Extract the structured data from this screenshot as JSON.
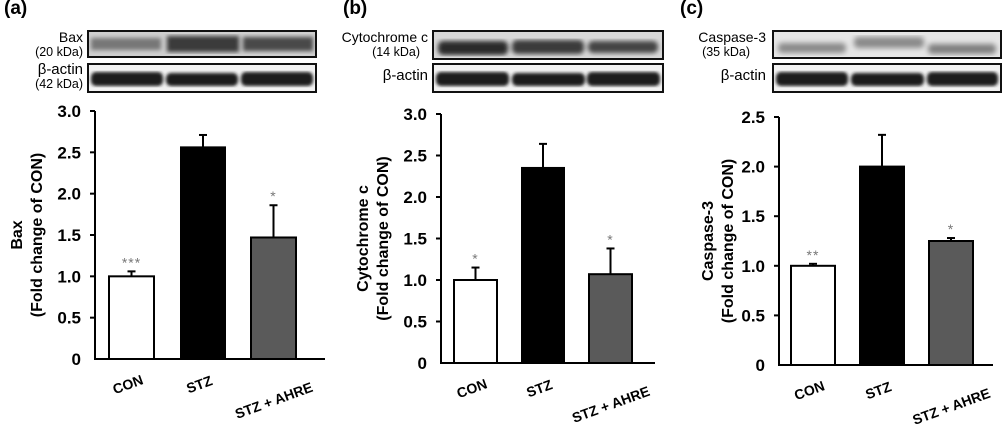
{
  "panels": [
    {
      "label": "(a)",
      "blot_top": {
        "name": "Bax",
        "kda": "(20 kDa)"
      },
      "blot_bottom": {
        "name": "β-actin",
        "kda": "(42 kDa)"
      }
    },
    {
      "label": "(b)",
      "blot_top": {
        "name": "Cytochrome c",
        "kda": "(14 kDa)"
      },
      "blot_bottom": {
        "name": "β-actin",
        "kda": ""
      }
    },
    {
      "label": "(c)",
      "blot_top": {
        "name": "Caspase-3",
        "kda": "(35 kDa)"
      },
      "blot_bottom": {
        "name": "β-actin",
        "kda": ""
      }
    }
  ],
  "colors": {
    "CON": "#ffffff",
    "STZ": "#000000",
    "STZ + AHRE": "#5a5a5a",
    "significance": "#777777"
  },
  "chart_data": [
    {
      "type": "bar",
      "title": "(a)",
      "categories": [
        "CON",
        "STZ",
        "STZ + AHRE"
      ],
      "values": [
        1.0,
        2.56,
        1.47
      ],
      "errors": [
        0.06,
        0.15,
        0.39
      ],
      "significance": [
        "***",
        "",
        "*"
      ],
      "xlabel": "",
      "ylabel": "Bax (Fold change of CON)",
      "ylabel_line1": "Bax",
      "ylabel_line2": "(Fold change of CON)",
      "ylim": [
        0,
        3.0
      ],
      "yticks": [
        "0",
        "0.5",
        "1.0",
        "1.5",
        "2.0",
        "2.5",
        "3.0"
      ],
      "grid": false
    },
    {
      "type": "bar",
      "title": "(b)",
      "categories": [
        "CON",
        "STZ",
        "STZ + AHRE"
      ],
      "values": [
        1.0,
        2.35,
        1.07
      ],
      "errors": [
        0.15,
        0.29,
        0.31
      ],
      "significance": [
        "*",
        "",
        "*"
      ],
      "xlabel": "",
      "ylabel": "Cytochrome c (Fold change of CON)",
      "ylabel_line1": "Cytochrome c",
      "ylabel_line2": "(Fold change of CON)",
      "ylim": [
        0,
        3.0
      ],
      "yticks": [
        "0",
        "0.5",
        "1.0",
        "1.5",
        "2.0",
        "2.5",
        "3.0"
      ],
      "grid": false
    },
    {
      "type": "bar",
      "title": "(c)",
      "categories": [
        "CON",
        "STZ",
        "STZ + AHRE"
      ],
      "values": [
        1.0,
        2.0,
        1.25
      ],
      "errors": [
        0.02,
        0.32,
        0.03
      ],
      "significance": [
        "**",
        "",
        "*"
      ],
      "xlabel": "",
      "ylabel": "Caspase-3 (Fold change of CON)",
      "ylabel_line1": "Caspase-3",
      "ylabel_line2": "(Fold change of CON)",
      "ylim": [
        0,
        2.5
      ],
      "yticks": [
        "0",
        "0.5",
        "1.0",
        "1.5",
        "2.0",
        "2.5"
      ],
      "grid": false
    }
  ]
}
